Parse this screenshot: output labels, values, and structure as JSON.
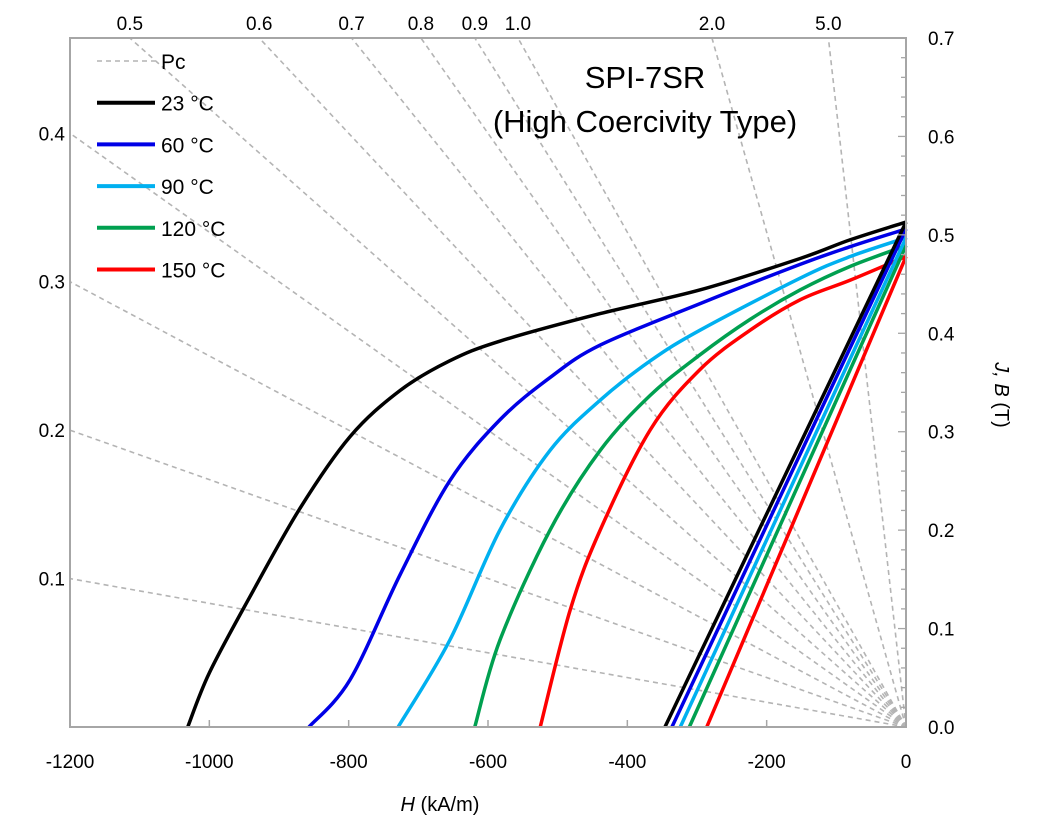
{
  "chart_data": {
    "type": "line",
    "title": "SPI-7SR",
    "subtitle": "(High Coercivity Type)",
    "xlabel_italic": "H",
    "xlabel_unit": " (kA/m)",
    "ylabel_italic": "J, B",
    "ylabel_unit": " (T)",
    "xlim": [
      -1200,
      0
    ],
    "ylim": [
      0,
      0.7
    ],
    "x_ticks": [
      "-1200",
      "-1000",
      "-800",
      "-600",
      "-400",
      "-200",
      "0"
    ],
    "y_ticks": [
      "0.0",
      "0.1",
      "0.2",
      "0.3",
      "0.4",
      "0.5",
      "0.6",
      "0.7"
    ],
    "y_axis_side": "right",
    "grid": false,
    "legend_position": "top-left",
    "permeance_lines": {
      "name": "Pc",
      "color": "#b4b4b4",
      "values": [
        0.1,
        0.2,
        0.3,
        0.4,
        0.5,
        0.6,
        0.7,
        0.8,
        0.9,
        1.0,
        2.0,
        5.0
      ],
      "left_labels": [
        "0.1",
        "0.2",
        "0.3",
        "0.4"
      ],
      "top_labels": [
        "0.5",
        "0.6",
        "0.7",
        "0.8",
        "0.9",
        "1.0",
        "2.0",
        "5.0"
      ]
    },
    "series": [
      {
        "name": "23 °C",
        "color": "#000000",
        "J": [
          [
            0,
            0.513
          ],
          [
            -80,
            0.495
          ],
          [
            -152,
            0.476
          ],
          [
            -296,
            0.444
          ],
          [
            -439,
            0.42
          ],
          [
            -583,
            0.392
          ],
          [
            -655,
            0.372
          ],
          [
            -726,
            0.342
          ],
          [
            -798,
            0.295
          ],
          [
            -870,
            0.222
          ],
          [
            -942,
            0.132
          ],
          [
            -1000,
            0.055
          ],
          [
            -1031,
            0.0
          ]
        ],
        "B": [
          [
            0,
            0.513
          ],
          [
            -346,
            0.0
          ]
        ]
      },
      {
        "name": "60 °C",
        "color": "#0000e6",
        "J": [
          [
            0,
            0.506
          ],
          [
            -80,
            0.488
          ],
          [
            -152,
            0.47
          ],
          [
            -296,
            0.43
          ],
          [
            -439,
            0.388
          ],
          [
            -511,
            0.355
          ],
          [
            -583,
            0.312
          ],
          [
            -655,
            0.25
          ],
          [
            -726,
            0.155
          ],
          [
            -798,
            0.048
          ],
          [
            -857,
            0.0
          ]
        ],
        "B": [
          [
            0,
            0.506
          ],
          [
            -336,
            0.0
          ]
        ]
      },
      {
        "name": "90 °C",
        "color": "#00b0f0",
        "J": [
          [
            0,
            0.497
          ],
          [
            -80,
            0.478
          ],
          [
            -152,
            0.456
          ],
          [
            -296,
            0.403
          ],
          [
            -367,
            0.372
          ],
          [
            -439,
            0.332
          ],
          [
            -511,
            0.281
          ],
          [
            -583,
            0.2
          ],
          [
            -655,
            0.088
          ],
          [
            -729,
            0.0
          ]
        ],
        "B": [
          [
            0,
            0.497
          ],
          [
            -324,
            0.0
          ]
        ]
      },
      {
        "name": "120 °C",
        "color": "#00a050",
        "J": [
          [
            0,
            0.489
          ],
          [
            -80,
            0.468
          ],
          [
            -152,
            0.444
          ],
          [
            -224,
            0.414
          ],
          [
            -296,
            0.378
          ],
          [
            -367,
            0.337
          ],
          [
            -439,
            0.281
          ],
          [
            -511,
            0.2
          ],
          [
            -583,
            0.088
          ],
          [
            -619,
            0.0
          ]
        ],
        "B": [
          [
            0,
            0.489
          ],
          [
            -311,
            0.0
          ]
        ]
      },
      {
        "name": "150 °C",
        "color": "#ff0000",
        "J": [
          [
            0,
            0.478
          ],
          [
            -80,
            0.454
          ],
          [
            -152,
            0.434
          ],
          [
            -224,
            0.403
          ],
          [
            -296,
            0.363
          ],
          [
            -367,
            0.302
          ],
          [
            -439,
            0.2
          ],
          [
            -482,
            0.119
          ],
          [
            -525,
            0.0
          ]
        ],
        "B": [
          [
            0,
            0.478
          ],
          [
            -286,
            0.0
          ]
        ]
      }
    ]
  }
}
